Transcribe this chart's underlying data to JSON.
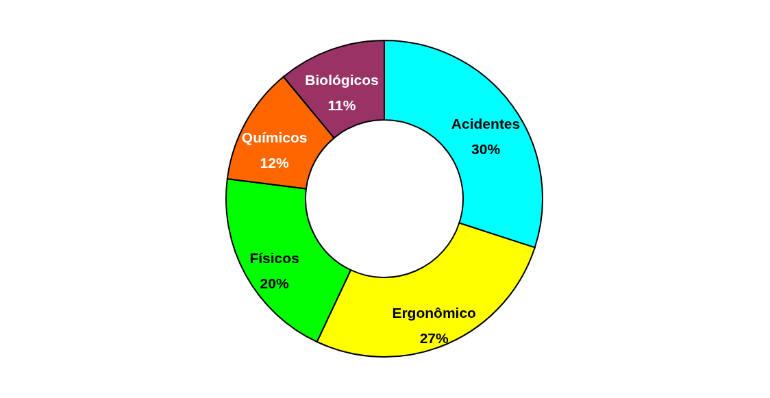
{
  "chart_data": {
    "type": "donut",
    "categories": [
      "Acidentes",
      "Ergonômico",
      "Físicos",
      "Químicos",
      "Biológicos"
    ],
    "values": [
      30,
      27,
      20,
      12,
      11
    ],
    "colors": [
      "#00ffff",
      "#ffff00",
      "#00ff00",
      "#ff6600",
      "#993366"
    ],
    "value_labels": [
      "30%",
      "27%",
      "20%",
      "12%",
      "11%"
    ],
    "legend": false
  }
}
